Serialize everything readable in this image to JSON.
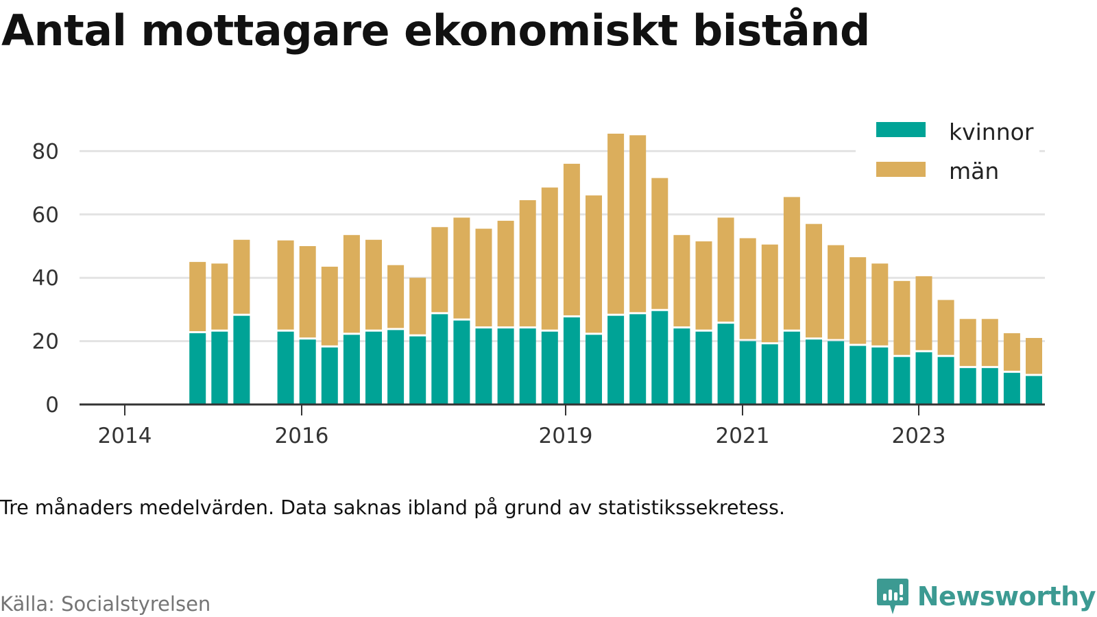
{
  "title": "Antal mottagare ekonomiskt bistånd",
  "note": "Tre månaders medelvärden. Data saknas ibland på grund av statistikssekretess.",
  "source": "Källa: Socialstyrelsen",
  "brand": {
    "name": "Newsworthy",
    "logo_icon": "newsworthy-logo-icon",
    "color": "#3c9a92"
  },
  "colors": {
    "kvinnor": "#00a396",
    "man": "#dbae5c",
    "grid": "#e3e3e3",
    "axis": "#333333"
  },
  "chart_data": {
    "type": "bar",
    "stacked": true,
    "x_tick_labels": [
      "2014",
      "2016",
      "2019",
      "2021",
      "2023"
    ],
    "y_ticks": [
      0,
      20,
      40,
      60,
      80
    ],
    "ylim": [
      0,
      92
    ],
    "grid": true,
    "legend_position": "top-right",
    "series": [
      {
        "name": "kvinnor",
        "color": "#00a396",
        "values": [
          null,
          null,
          22.5,
          23,
          28,
          null,
          23,
          20.5,
          18,
          22,
          23,
          23.5,
          21.5,
          28.5,
          26.5,
          24,
          24,
          24,
          23,
          27.5,
          22,
          28,
          28.5,
          29.5,
          24,
          23,
          25.5,
          20,
          19,
          23,
          20.5,
          20,
          18.5,
          18,
          15,
          16.5,
          15,
          11.5,
          11.5,
          10,
          9
        ]
      },
      {
        "name": "män",
        "color": "#dbae5c",
        "values": [
          null,
          null,
          22.5,
          21.5,
          24,
          null,
          28.8,
          29.5,
          25.5,
          31.5,
          29,
          20.5,
          18.5,
          27.5,
          32.5,
          31.5,
          34,
          40.5,
          45.5,
          48.5,
          44,
          57.5,
          56.5,
          42,
          29.5,
          28.5,
          33.5,
          32.5,
          31.5,
          42.5,
          36.5,
          30.3,
          28,
          26.5,
          24,
          24,
          18,
          15.5,
          15.5,
          12.5,
          12
        ]
      }
    ]
  }
}
